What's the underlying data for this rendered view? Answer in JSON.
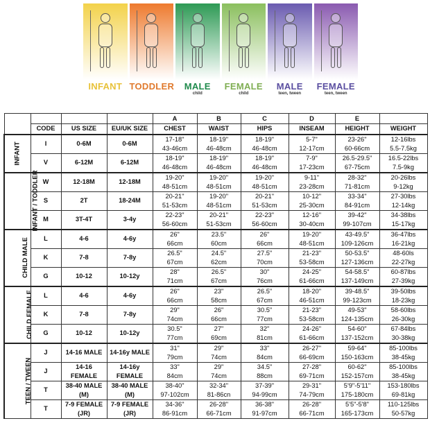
{
  "banner": {
    "panels": [
      {
        "label": "INFANT",
        "sub": "",
        "color": "#e8c23a",
        "bg": [
          "#f3d24a",
          "#ffffff"
        ]
      },
      {
        "label": "TODDLER",
        "sub": "",
        "color": "#e07a2e",
        "bg": [
          "#ee7a2e",
          "#ffffff"
        ]
      },
      {
        "label": "MALE",
        "sub": "child",
        "color": "#1f8a4c",
        "bg": [
          "#2e9a55",
          "#ffffff"
        ]
      },
      {
        "label": "FEMALE",
        "sub": "child",
        "color": "#7fae52",
        "bg": [
          "#8bbf5e",
          "#ffffff"
        ]
      },
      {
        "label": "MALE",
        "sub": "teen, tween",
        "color": "#5a4ea0",
        "bg": [
          "#6a5bb0",
          "#ffffff"
        ]
      },
      {
        "label": "FEMALE",
        "sub": "teen, tween",
        "color": "#5a4ea0",
        "bg": [
          "#8a5ab0",
          "#ffffff"
        ]
      }
    ]
  },
  "table": {
    "letters": [
      "A",
      "B",
      "C",
      "D",
      "E"
    ],
    "headers": [
      "CODE",
      "US SIZE",
      "EU/UK SIZE",
      "CHEST",
      "WAIST",
      "HIPS",
      "INSEAM",
      "HEIGHT",
      "WEIGHT"
    ],
    "groups": [
      {
        "name": "INFANT",
        "rows": [
          [
            "I",
            "0-6M",
            "0-6M",
            "17-18\"|43-46cm",
            "18-19\"|46-48cm",
            "18-19\"|46-48cm",
            "5-7\"|12-17cm",
            "23-26\"|60-66cm",
            "12-16lbs|5.5-7.5kg"
          ],
          [
            "V",
            "6-12M",
            "6-12M",
            "18-19\"|46-48cm",
            "18-19\"|46-48cm",
            "18-19\"|46-48cm",
            "7-9\"|17-23cm",
            "26.5-29.5\"|67-75cm",
            "16.5-22lbs|7.5-9kg"
          ]
        ]
      },
      {
        "name": "INFANT / TODDLER",
        "rows": [
          [
            "W",
            "12-18M",
            "12-18M",
            "19-20\"|48-51cm",
            "19-20\"|48-51cm",
            "19-20\"|48-51cm",
            "9-11\"|23-28cm",
            "28-32\"|71-81cm",
            "20-26lbs|9-12kg"
          ],
          [
            "S",
            "2T",
            "18-24M",
            "20-21\"|51-53cm",
            "19-20\"|48-51cm",
            "20-21\"|51-53cm",
            "10-12\"|25-30cm",
            "33-34\"|84-91cm",
            "27-30lbs|12-14kg"
          ],
          [
            "M",
            "3T-4T",
            "3-4y",
            "22-23\"|56-60cm",
            "20-21\"|51-53cm",
            "22-23\"|56-60cm",
            "12-16\"|30-40cm",
            "39-42\"|99-107cm",
            "34-38lbs|15-17kg"
          ]
        ]
      },
      {
        "name": "CHILD MALE",
        "rows": [
          [
            "L",
            "4-6",
            "4-6y",
            "26\"|66cm",
            "23.5\"|60cm",
            "26\"|66cm",
            "19-20\"|48-51cm",
            "43-49.5\"|109-126cm",
            "36-47lbs|16-21kg"
          ],
          [
            "K",
            "7-8",
            "7-8y",
            "26.5\"|67cm",
            "24.5\"|62cm",
            "27.5\"|70cm",
            "21-23\"|53-58cm",
            "50-53.5\"|127-136cm",
            "48-60ls|22-27kg"
          ],
          [
            "G",
            "10-12",
            "10-12y",
            "28\"|71cm",
            "26.5\"|67cm",
            "30\"|76cm",
            "24-25\"|61-66cm",
            "54-58.5\"|137-149cm",
            "60-87lbs|27-39kg"
          ]
        ]
      },
      {
        "name": "CHILD FEMALE",
        "rows": [
          [
            "L",
            "4-6",
            "4-6y",
            "26\"|66cm",
            "23\"|58cm",
            "26.5\"|67cm",
            "18-20\"|46-51cm",
            "39-48.5\"|99-123cm",
            "39-50lbs|18-23kg"
          ],
          [
            "K",
            "7-8",
            "7-8y",
            "29\"|74cm",
            "26\"|66cm",
            "30.5\"|77cm",
            "21-23\"|53-58cm",
            "49-53\"|124-135cm",
            "58-60lbs|26-30kg"
          ],
          [
            "G",
            "10-12",
            "10-12y",
            "30.5\"|77cm",
            "27\"|69cm",
            "32\"|81cm",
            "24-26\"|61-66cm",
            "54-60\"|137-152cm",
            "67-84lbs|30-38kg"
          ]
        ]
      },
      {
        "name": "TEEN / TWEEN",
        "rows": [
          [
            "J",
            "14-16 MALE",
            "14-16y MALE",
            "31\"|79cm",
            "29\"|74cm",
            "33\"|84cm",
            "26-27\"|66-69cm",
            "59-64\"|150-163cm",
            "85-100lbs|38-45kg"
          ],
          [
            "J",
            "14-16|FEMALE",
            "14-16y|FEMALE",
            "33\"|84cm",
            "29\"|74cm",
            "34.5\"|88cm",
            "27-28\"|69-71cm",
            "60-62\"|152-157cm",
            "85-100lbs|38-45kg"
          ],
          [
            "T",
            "38-40 MALE|(M)",
            "38-40 MALE|(M)",
            "38-40\"|97-102cm",
            "32-34\"|81-86cn",
            "37-39\"|94-99cm",
            "29-31\"|74-79cm",
            "5'9\"-5'11\"|175-180cm",
            "153-180lbs|69-81kg"
          ],
          [
            "T",
            "7-9 FEMALE|(JR)",
            "7-9 FEMALE|(JR)",
            "34-36\"|86-91cm",
            "26-28\"|66-71cm",
            "36-38\"|91-97cm",
            "26-28\"|66-71cm",
            "5'5\"-5'8\"|165-173cm",
            "110-125lbs|50-57kg"
          ]
        ]
      }
    ]
  }
}
